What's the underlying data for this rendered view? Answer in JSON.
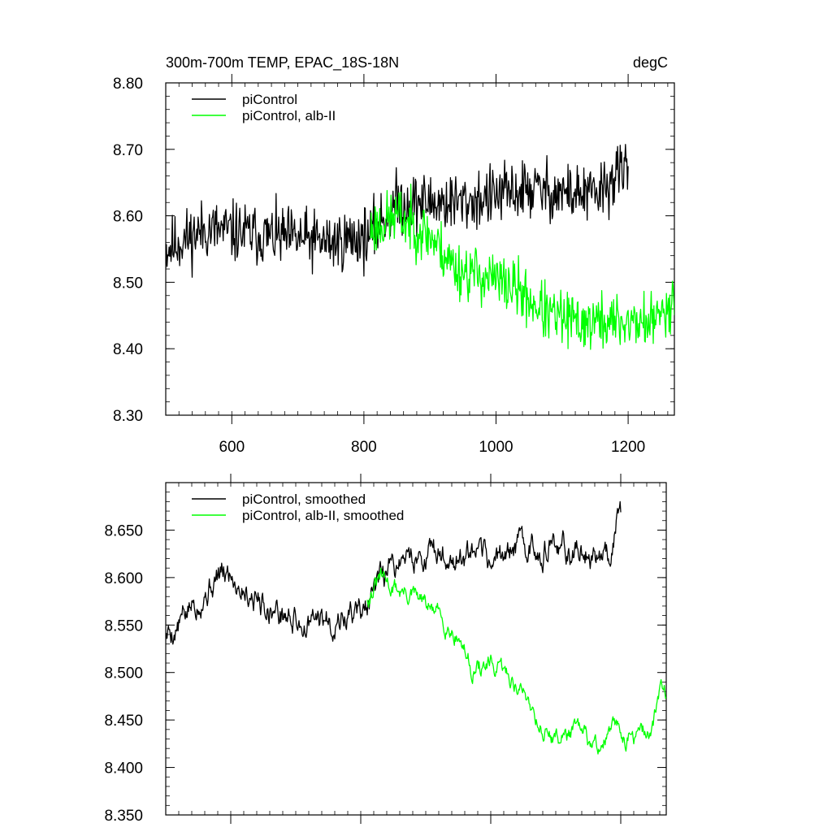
{
  "header": {
    "title": "300m-700m TEMP, EPAC_18S-18N",
    "units": "degC"
  },
  "colors": {
    "control": "#000000",
    "alb": "#00ff00"
  },
  "chart_data": [
    {
      "type": "line",
      "id": "raw",
      "xlim": [
        500,
        1270
      ],
      "ylim": [
        8.3,
        8.8
      ],
      "xticks": [
        600,
        800,
        1000,
        1200
      ],
      "xtick_labels": [
        "600",
        "800",
        "1000",
        "1200"
      ],
      "yticks": [
        8.3,
        8.4,
        8.5,
        8.6,
        8.7,
        8.8
      ],
      "ytick_labels": [
        "8.30",
        "8.40",
        "8.50",
        "8.60",
        "8.70",
        "8.80"
      ],
      "yminor_step": 0.02,
      "xminor_step": 20,
      "legend": [
        "piControl",
        "piControl, alb-II"
      ],
      "series": [
        {
          "name": "piControl",
          "color": "#000000",
          "x_range": [
            500,
            1200
          ],
          "anchors": [
            [
              500,
              8.55
            ],
            [
              560,
              8.58
            ],
            [
              650,
              8.57
            ],
            [
              750,
              8.56
            ],
            [
              810,
              8.57
            ],
            [
              850,
              8.62
            ],
            [
              950,
              8.62
            ],
            [
              1050,
              8.64
            ],
            [
              1150,
              8.63
            ],
            [
              1195,
              8.67
            ]
          ],
          "noise": 0.038,
          "seed": 11
        },
        {
          "name": "piControl, alb-II",
          "color": "#00ff00",
          "x_range": [
            810,
            1270
          ],
          "anchors": [
            [
              810,
              8.58
            ],
            [
              850,
              8.6
            ],
            [
              900,
              8.57
            ],
            [
              940,
              8.52
            ],
            [
              980,
              8.51
            ],
            [
              1030,
              8.49
            ],
            [
              1080,
              8.45
            ],
            [
              1120,
              8.44
            ],
            [
              1180,
              8.44
            ],
            [
              1240,
              8.44
            ],
            [
              1270,
              8.48
            ]
          ],
          "noise": 0.036,
          "seed": 23
        }
      ]
    },
    {
      "type": "line",
      "id": "smoothed",
      "xlim": [
        500,
        1270
      ],
      "ylim": [
        8.35,
        8.7
      ],
      "xticks": [
        600,
        800,
        1000,
        1200
      ],
      "xtick_labels": [],
      "yticks": [
        8.35,
        8.4,
        8.45,
        8.5,
        8.55,
        8.6,
        8.65
      ],
      "ytick_labels": [
        "8.350",
        "8.400",
        "8.450",
        "8.500",
        "8.550",
        "8.600",
        "8.650"
      ],
      "yminor_step": 0.01,
      "xminor_step": 20,
      "legend": [
        "piControl, smoothed",
        "piControl, alb-II, smoothed"
      ],
      "series": [
        {
          "name": "piControl, smoothed",
          "color": "#000000",
          "x_range": [
            500,
            1200
          ],
          "anchors": [
            [
              500,
              8.54
            ],
            [
              520,
              8.55
            ],
            [
              550,
              8.58
            ],
            [
              580,
              8.6
            ],
            [
              600,
              8.605
            ],
            [
              640,
              8.58
            ],
            [
              680,
              8.56
            ],
            [
              720,
              8.55
            ],
            [
              780,
              8.56
            ],
            [
              810,
              8.57
            ],
            [
              830,
              8.59
            ],
            [
              860,
              8.62
            ],
            [
              900,
              8.625
            ],
            [
              950,
              8.62
            ],
            [
              1000,
              8.615
            ],
            [
              1050,
              8.635
            ],
            [
              1100,
              8.63
            ],
            [
              1150,
              8.625
            ],
            [
              1185,
              8.63
            ],
            [
              1195,
              8.67
            ]
          ],
          "noise": 0.018,
          "seed": 5
        },
        {
          "name": "piControl, alb-II, smoothed",
          "color": "#00ff00",
          "x_range": [
            810,
            1270
          ],
          "anchors": [
            [
              810,
              8.58
            ],
            [
              830,
              8.598
            ],
            [
              850,
              8.59
            ],
            [
              880,
              8.58
            ],
            [
              920,
              8.56
            ],
            [
              950,
              8.54
            ],
            [
              970,
              8.505
            ],
            [
              1000,
              8.505
            ],
            [
              1030,
              8.495
            ],
            [
              1060,
              8.47
            ],
            [
              1080,
              8.44
            ],
            [
              1100,
              8.43
            ],
            [
              1130,
              8.44
            ],
            [
              1160,
              8.42
            ],
            [
              1190,
              8.44
            ],
            [
              1220,
              8.43
            ],
            [
              1250,
              8.44
            ],
            [
              1262,
              8.49
            ],
            [
              1270,
              8.48
            ]
          ],
          "noise": 0.012,
          "seed": 31
        }
      ]
    }
  ]
}
